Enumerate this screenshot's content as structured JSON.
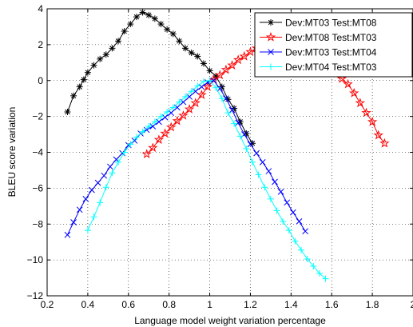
{
  "chart_data": {
    "type": "line",
    "title": "",
    "xlabel": "Language model weight variation percentage",
    "ylabel": "BLEU score variation",
    "xlim": [
      0.2,
      2.0
    ],
    "ylim": [
      -12,
      4
    ],
    "xticks": [
      0.2,
      0.4,
      0.6,
      0.8,
      1.0,
      1.2,
      1.4,
      1.6,
      1.8,
      2.0
    ],
    "xtick_labels": [
      "0.2",
      "0.4",
      "0.6",
      "0.8",
      "1",
      "1.2",
      "1.4",
      "1.6",
      "1.8",
      "2"
    ],
    "yticks": [
      -12,
      -10,
      -8,
      -6,
      -4,
      -2,
      0,
      2,
      4
    ],
    "ytick_labels": [
      "−12",
      "−10",
      "−8",
      "−6",
      "−4",
      "−2",
      "0",
      "2",
      "4"
    ],
    "grid": true,
    "legend_position": "top-right",
    "series": [
      {
        "name": "Dev:MT03 Test:MT08",
        "color": "#000000",
        "marker": "asterisk",
        "x": [
          0.3,
          0.33,
          0.36,
          0.38,
          0.4,
          0.43,
          0.46,
          0.49,
          0.52,
          0.55,
          0.58,
          0.61,
          0.64,
          0.67,
          0.7,
          0.73,
          0.76,
          0.79,
          0.82,
          0.85,
          0.88,
          0.91,
          0.94,
          0.97,
          1.0,
          1.03,
          1.06,
          1.09,
          1.12,
          1.15,
          1.18,
          1.21
        ],
        "y": [
          -1.75,
          -0.85,
          -0.35,
          0.05,
          0.45,
          0.85,
          1.2,
          1.45,
          1.8,
          2.2,
          2.75,
          3.15,
          3.55,
          3.8,
          3.65,
          3.45,
          3.15,
          2.85,
          2.6,
          2.2,
          1.8,
          1.55,
          1.35,
          0.95,
          0.55,
          0.25,
          -0.35,
          -1.05,
          -1.55,
          -2.3,
          -2.95,
          -3.5
        ]
      },
      {
        "name": "Dev:MT08 Test:MT03",
        "color": "#ff0000",
        "marker": "pentagram",
        "x": [
          0.69,
          0.72,
          0.75,
          0.78,
          0.81,
          0.84,
          0.87,
          0.9,
          0.93,
          0.96,
          0.99,
          1.02,
          1.05,
          1.08,
          1.11,
          1.14,
          1.17,
          1.2,
          1.23,
          1.26,
          1.29,
          1.32,
          1.35,
          1.38,
          1.41,
          1.44,
          1.47,
          1.5,
          1.53,
          1.56,
          1.59,
          1.62,
          1.65,
          1.68,
          1.71,
          1.74,
          1.77,
          1.8,
          1.83,
          1.86
        ],
        "y": [
          -4.1,
          -3.75,
          -3.3,
          -2.95,
          -2.6,
          -2.25,
          -1.95,
          -1.6,
          -1.25,
          -0.8,
          -0.35,
          0.05,
          0.3,
          0.6,
          0.85,
          1.15,
          1.35,
          1.6,
          1.8,
          2.0,
          2.2,
          2.35,
          2.5,
          2.6,
          2.65,
          2.6,
          2.5,
          2.2,
          1.85,
          1.45,
          0.95,
          0.45,
          0.1,
          -0.2,
          -0.7,
          -1.25,
          -1.8,
          -2.3,
          -3.05,
          -3.5
        ]
      },
      {
        "name": "Dev:MT03 Test:MT04",
        "color": "#0000ff",
        "marker": "x",
        "x": [
          0.3,
          0.33,
          0.36,
          0.39,
          0.42,
          0.45,
          0.48,
          0.51,
          0.54,
          0.57,
          0.6,
          0.63,
          0.66,
          0.69,
          0.72,
          0.75,
          0.78,
          0.81,
          0.84,
          0.87,
          0.9,
          0.93,
          0.96,
          0.99,
          1.02,
          1.05,
          1.08,
          1.11,
          1.14,
          1.17,
          1.2,
          1.23,
          1.26,
          1.29,
          1.32,
          1.35,
          1.38,
          1.41,
          1.44,
          1.47
        ],
        "y": [
          -8.6,
          -7.9,
          -7.2,
          -6.6,
          -6.1,
          -5.7,
          -5.3,
          -4.8,
          -4.4,
          -4.05,
          -3.6,
          -3.35,
          -2.95,
          -2.75,
          -2.55,
          -2.3,
          -2.05,
          -1.8,
          -1.5,
          -1.2,
          -0.9,
          -0.6,
          -0.35,
          -0.1,
          0.0,
          -0.45,
          -1.0,
          -1.65,
          -2.35,
          -3.0,
          -3.55,
          -4.05,
          -4.55,
          -5.05,
          -5.65,
          -6.2,
          -6.8,
          -7.35,
          -7.85,
          -8.4
        ]
      },
      {
        "name": "Dev:MT04 Test:MT03",
        "color": "#00ffff",
        "marker": "plus",
        "x": [
          0.4,
          0.43,
          0.46,
          0.49,
          0.52,
          0.55,
          0.58,
          0.61,
          0.64,
          0.67,
          0.7,
          0.73,
          0.76,
          0.79,
          0.82,
          0.85,
          0.88,
          0.91,
          0.94,
          0.97,
          1.0,
          1.03,
          1.06,
          1.09,
          1.12,
          1.15,
          1.18,
          1.21,
          1.24,
          1.27,
          1.3,
          1.33,
          1.36,
          1.39,
          1.42,
          1.45,
          1.48,
          1.51,
          1.54,
          1.57
        ],
        "y": [
          -8.35,
          -7.6,
          -6.8,
          -5.95,
          -5.15,
          -4.55,
          -4.0,
          -3.55,
          -3.15,
          -2.85,
          -2.55,
          -2.3,
          -2.0,
          -1.75,
          -1.5,
          -1.2,
          -0.9,
          -0.6,
          -0.3,
          -0.05,
          0.0,
          -0.4,
          -1.0,
          -1.8,
          -2.4,
          -3.1,
          -3.8,
          -4.55,
          -5.25,
          -5.95,
          -6.6,
          -7.25,
          -7.85,
          -8.35,
          -8.95,
          -9.45,
          -9.95,
          -10.35,
          -10.75,
          -11.05
        ]
      }
    ]
  }
}
